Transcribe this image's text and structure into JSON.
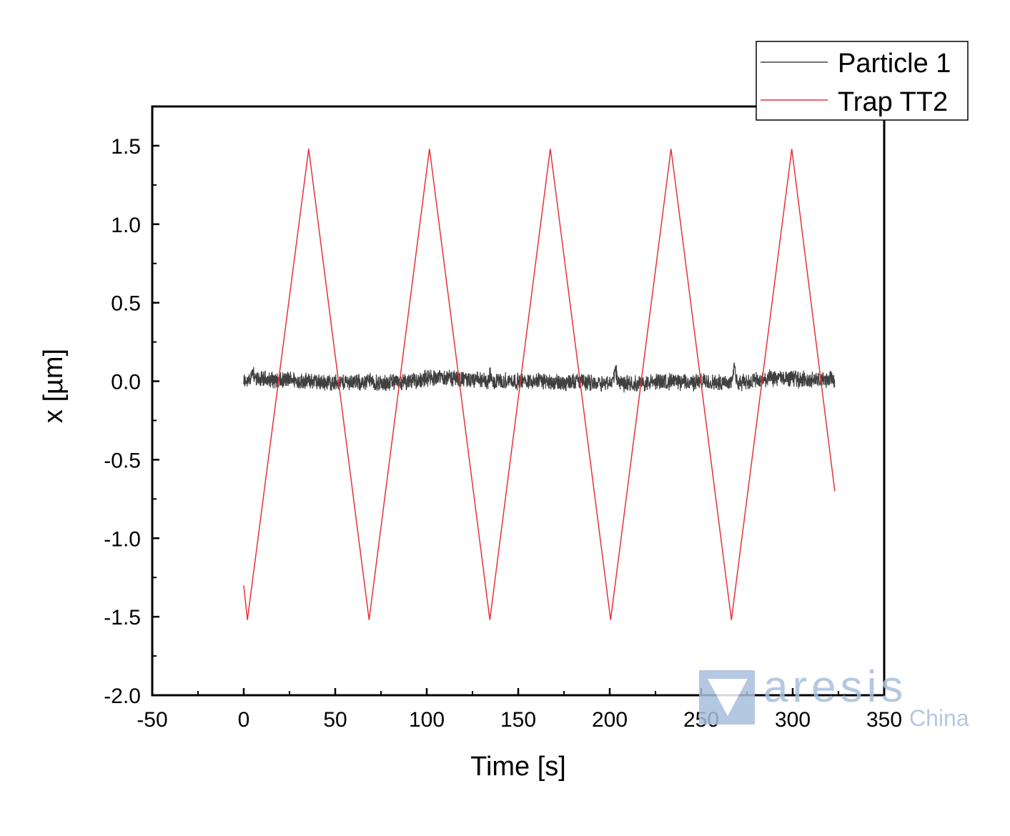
{
  "chart_data": {
    "type": "line",
    "xlabel": "Time [s]",
    "ylabel": "x [µm]",
    "xlim": [
      -50,
      350
    ],
    "ylim": [
      -2.0,
      1.75
    ],
    "xticks": [
      -50,
      0,
      50,
      100,
      150,
      200,
      250,
      300,
      350
    ],
    "xtick_labels": [
      "-50",
      "0",
      "50",
      "100",
      "150",
      "200",
      "250",
      "300",
      "350"
    ],
    "yticks": [
      -2.0,
      -1.5,
      -1.0,
      -0.5,
      0.0,
      0.5,
      1.0,
      1.5
    ],
    "ytick_labels": [
      "-2.0",
      "-1.5",
      "-1.0",
      "-0.5",
      "0.0",
      "0.5",
      "1.0",
      "1.5"
    ],
    "grid": false,
    "legend_position": "top-right",
    "series": [
      {
        "name": "Particle 1",
        "color": "#404040",
        "style": "noisy signal around 0",
        "x_range": [
          0,
          323
        ],
        "mean": 0.0,
        "amplitude": 0.06,
        "spikes": [
          {
            "x": 5,
            "y": 0.13
          },
          {
            "x": 68,
            "y": 0.08
          },
          {
            "x": 135,
            "y": 0.1
          },
          {
            "x": 203,
            "y": 0.16
          },
          {
            "x": 268,
            "y": 0.17
          }
        ]
      },
      {
        "name": "Trap TT2",
        "color": "#e8303a",
        "style": "triangle wave",
        "x": [
          0,
          2,
          35.5,
          68.5,
          101.5,
          134.5,
          167.5,
          200.5,
          233.5,
          266.5,
          299.5,
          323
        ],
        "y": [
          -1.3,
          -1.52,
          1.48,
          -1.52,
          1.48,
          -1.52,
          1.48,
          -1.52,
          1.48,
          -1.52,
          1.48,
          -0.7
        ]
      }
    ]
  },
  "watermark": {
    "brand": "aresis",
    "sub": "China",
    "color": "#a9bfdc"
  }
}
